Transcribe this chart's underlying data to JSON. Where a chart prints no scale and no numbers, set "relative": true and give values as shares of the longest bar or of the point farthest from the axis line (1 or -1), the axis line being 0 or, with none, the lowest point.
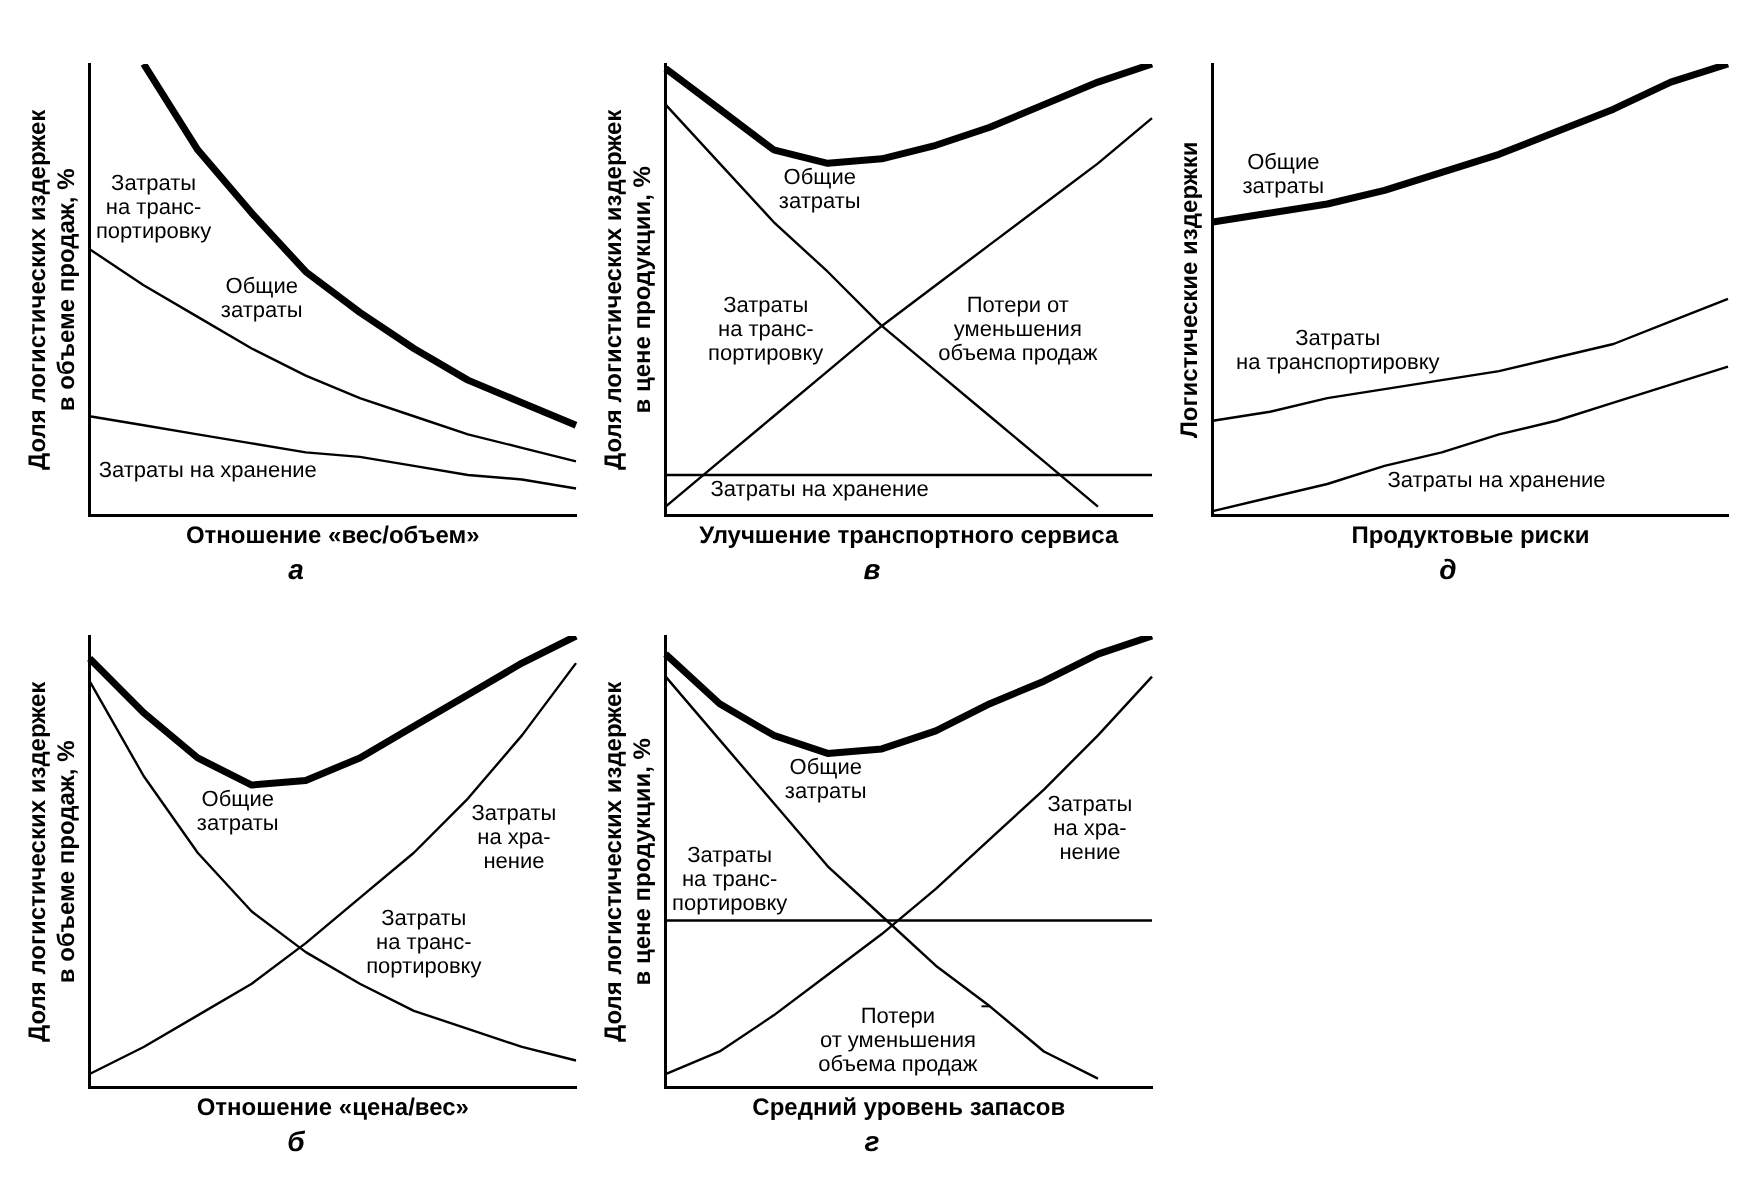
{
  "chart_data": [
    {
      "type": "line",
      "relative": true,
      "title": "а",
      "xlabel": "Отношение «вес/объем»",
      "ylabel": "Доля логистических издержек\nв объеме продаж, %",
      "categories": [
        null,
        null,
        null,
        null,
        null,
        null,
        null,
        null,
        null,
        null
      ],
      "series": [
        {
          "name": "Общие\nзатраты",
          "color": "#000000",
          "values": [
            null,
            1,
            0.81,
            0.67,
            0.54,
            0.45,
            0.37,
            0.3,
            0.25,
            0.2
          ]
        },
        {
          "name": "Затраты\nна транс-\nпортировку",
          "color": "#000000",
          "values": [
            0.59,
            0.51,
            0.44,
            0.37,
            0.31,
            0.26,
            0.22,
            0.18,
            0.15,
            0.12
          ]
        },
        {
          "name": "Затраты на хранение",
          "color": "#000000",
          "values": [
            0.22,
            0.2,
            0.18,
            0.16,
            0.14,
            0.13,
            0.11,
            0.09,
            0.08,
            0.06
          ]
        }
      ]
    },
    {
      "type": "line",
      "relative": true,
      "title": "в",
      "xlabel": "Улучшение транспортного сервиса",
      "ylabel": "Доля логистических издержек\nв цене продукции, %",
      "categories": [
        null,
        null,
        null,
        null,
        null,
        null,
        null,
        null,
        null,
        null
      ],
      "series": [
        {
          "name": "Общие\nзатраты",
          "color": "#000000",
          "values": [
            0.99,
            0.9,
            0.81,
            0.78,
            0.79,
            0.82,
            0.86,
            0.91,
            0.96,
            1
          ]
        },
        {
          "name": "Затраты\nна транс-\nпортировку",
          "color": "#000000",
          "values": [
            0.02,
            0.12,
            0.22,
            0.32,
            0.42,
            0.51,
            0.6,
            0.69,
            0.78,
            0.88
          ]
        },
        {
          "name": "Потери от\nуменьшения\nобъема продаж",
          "color": "#000000",
          "values": [
            0.91,
            0.78,
            0.65,
            0.54,
            0.42,
            0.32,
            0.22,
            0.12,
            0.02,
            null
          ]
        },
        {
          "name": "Затраты на хранение",
          "color": "#000000",
          "values": [
            0.09,
            0.09,
            0.09,
            0.09,
            0.09,
            0.09,
            0.09,
            0.09,
            0.09,
            0.09
          ]
        }
      ]
    },
    {
      "type": "line",
      "relative": true,
      "title": "д",
      "xlabel": "Продуктовые риски",
      "ylabel": "Логистические издержки",
      "categories": [
        null,
        null,
        null,
        null,
        null,
        null,
        null,
        null,
        null,
        null
      ],
      "series": [
        {
          "name": "Общие\nзатраты",
          "color": "#000000",
          "values": [
            0.65,
            0.67,
            0.69,
            0.72,
            0.76,
            0.8,
            0.85,
            0.9,
            0.96,
            1
          ]
        },
        {
          "name": "Затраты\nна транспортировку",
          "color": "#000000",
          "values": [
            0.21,
            0.23,
            0.26,
            0.28,
            0.3,
            0.32,
            0.35,
            0.38,
            0.43,
            0.48
          ]
        },
        {
          "name": "Затраты на хранение",
          "color": "#000000",
          "values": [
            0.01,
            0.04,
            0.07,
            0.11,
            0.14,
            0.18,
            0.21,
            0.25,
            0.29,
            0.33
          ]
        }
      ]
    },
    {
      "type": "line",
      "relative": true,
      "title": "б",
      "xlabel": "Отношение «цена/вес»",
      "ylabel": "Доля логистических издержек\nв объеме продаж, %",
      "categories": [
        null,
        null,
        null,
        null,
        null,
        null,
        null,
        null,
        null,
        null
      ],
      "series": [
        {
          "name": "Общие\nзатраты",
          "color": "#000000",
          "values": [
            0.95,
            0.83,
            0.73,
            0.67,
            0.68,
            0.73,
            0.8,
            0.87,
            0.94,
            1
          ]
        },
        {
          "name": "Затраты\nна хра-\nнение",
          "color": "#000000",
          "values": [
            0.03,
            0.09,
            0.16,
            0.23,
            0.32,
            0.42,
            0.52,
            0.64,
            0.78,
            0.94
          ]
        },
        {
          "name": "Затраты\nна транс-\nпортировку",
          "color": "#000000",
          "values": [
            0.9,
            0.69,
            0.52,
            0.39,
            0.3,
            0.23,
            0.17,
            0.13,
            0.09,
            0.06
          ]
        }
      ]
    },
    {
      "type": "line",
      "relative": true,
      "title": "г",
      "xlabel": "Средний уровень запасов",
      "ylabel": "Доля логистических издержек\nв цене продукции, %",
      "categories": [
        null,
        null,
        null,
        null,
        null,
        null,
        null,
        null,
        null,
        null
      ],
      "series": [
        {
          "name": "Общие\nзатраты",
          "color": "#000000",
          "values": [
            0.96,
            0.85,
            0.78,
            0.74,
            0.75,
            0.79,
            0.85,
            0.9,
            0.96,
            1
          ]
        },
        {
          "name": "Затраты\nна хра-\nнение",
          "color": "#000000",
          "values": [
            0.03,
            0.08,
            0.16,
            0.25,
            0.34,
            0.44,
            0.55,
            0.66,
            0.78,
            0.91
          ]
        },
        {
          "name": "Затраты\nна транс-\nпортировку",
          "color": "#000000",
          "values": [
            0.37,
            0.37,
            0.37,
            0.37,
            0.37,
            0.37,
            0.37,
            0.37,
            0.37,
            0.37
          ]
        },
        {
          "name": "Потери\nот уменьшения\nобъема продаж",
          "color": "#000000",
          "values": [
            0.91,
            0.77,
            0.63,
            0.49,
            0.38,
            0.27,
            0.18,
            0.08,
            0.02,
            null
          ]
        }
      ]
    }
  ]
}
